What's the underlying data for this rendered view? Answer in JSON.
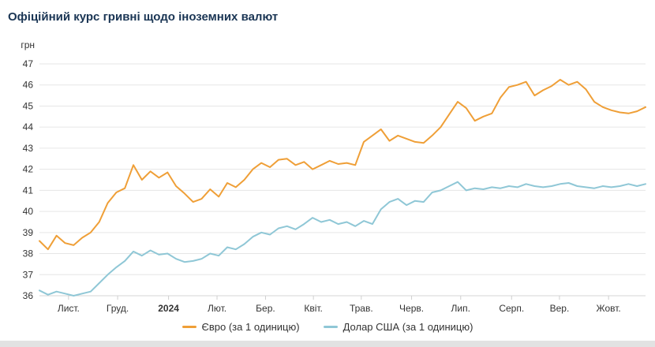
{
  "page": {
    "title": "Офіційний курс гривні щодо іноземних валют"
  },
  "chart_data": {
    "type": "line",
    "title": "Офіційний курс гривні щодо іноземних валют",
    "y_axis_title": "грн",
    "ylim": [
      36,
      47
    ],
    "y_tick_step": 1,
    "grid": "horizontal",
    "legend_position": "bottom",
    "x_ticks": [
      {
        "label": "Лист.",
        "f": 0.048,
        "bold": false
      },
      {
        "label": "Груд.",
        "f": 0.129,
        "bold": false
      },
      {
        "label": "2024",
        "f": 0.213,
        "bold": true
      },
      {
        "label": "Лют.",
        "f": 0.293,
        "bold": false
      },
      {
        "label": "Бер.",
        "f": 0.373,
        "bold": false
      },
      {
        "label": "Квіт.",
        "f": 0.452,
        "bold": false
      },
      {
        "label": "Трав.",
        "f": 0.531,
        "bold": false
      },
      {
        "label": "Черв.",
        "f": 0.614,
        "bold": false
      },
      {
        "label": "Лип.",
        "f": 0.695,
        "bold": false
      },
      {
        "label": "Серп.",
        "f": 0.779,
        "bold": false
      },
      {
        "label": "Вер.",
        "f": 0.858,
        "bold": false
      },
      {
        "label": "Жовт.",
        "f": 0.939,
        "bold": false
      }
    ],
    "series": [
      {
        "name": "Євро (за 1 одиницю)",
        "color": "#EF9F37",
        "values": [
          38.6,
          38.2,
          38.85,
          38.5,
          38.4,
          38.75,
          39.0,
          39.5,
          40.4,
          40.9,
          41.1,
          42.2,
          41.5,
          41.9,
          41.6,
          41.85,
          41.2,
          40.85,
          40.45,
          40.6,
          41.05,
          40.7,
          41.35,
          41.15,
          41.5,
          42.0,
          42.3,
          42.1,
          42.45,
          42.5,
          42.2,
          42.35,
          42.0,
          42.2,
          42.4,
          42.25,
          42.3,
          42.2,
          43.3,
          43.6,
          43.9,
          43.35,
          43.6,
          43.45,
          43.3,
          43.25,
          43.6,
          44.0,
          44.6,
          45.2,
          44.9,
          44.3,
          44.5,
          44.65,
          45.4,
          45.9,
          46.0,
          46.15,
          45.5,
          45.75,
          45.95,
          46.25,
          46.0,
          46.15,
          45.8,
          45.2,
          44.95,
          44.8,
          44.7,
          44.65,
          44.75,
          44.95
        ]
      },
      {
        "name": "Долар США (за 1 одиницю)",
        "color": "#8FC7D6",
        "values": [
          36.25,
          36.05,
          36.2,
          36.1,
          36.0,
          36.1,
          36.2,
          36.6,
          37.0,
          37.35,
          37.65,
          38.1,
          37.9,
          38.15,
          37.95,
          38.0,
          37.75,
          37.6,
          37.65,
          37.75,
          38.0,
          37.9,
          38.3,
          38.2,
          38.45,
          38.8,
          39.0,
          38.9,
          39.2,
          39.3,
          39.15,
          39.4,
          39.7,
          39.5,
          39.6,
          39.4,
          39.5,
          39.3,
          39.55,
          39.4,
          40.1,
          40.45,
          40.6,
          40.3,
          40.5,
          40.45,
          40.9,
          41.0,
          41.2,
          41.4,
          41.0,
          41.1,
          41.05,
          41.15,
          41.1,
          41.2,
          41.15,
          41.3,
          41.2,
          41.15,
          41.2,
          41.3,
          41.35,
          41.2,
          41.15,
          41.1,
          41.2,
          41.15,
          41.2,
          41.3,
          41.2,
          41.3
        ]
      }
    ]
  }
}
